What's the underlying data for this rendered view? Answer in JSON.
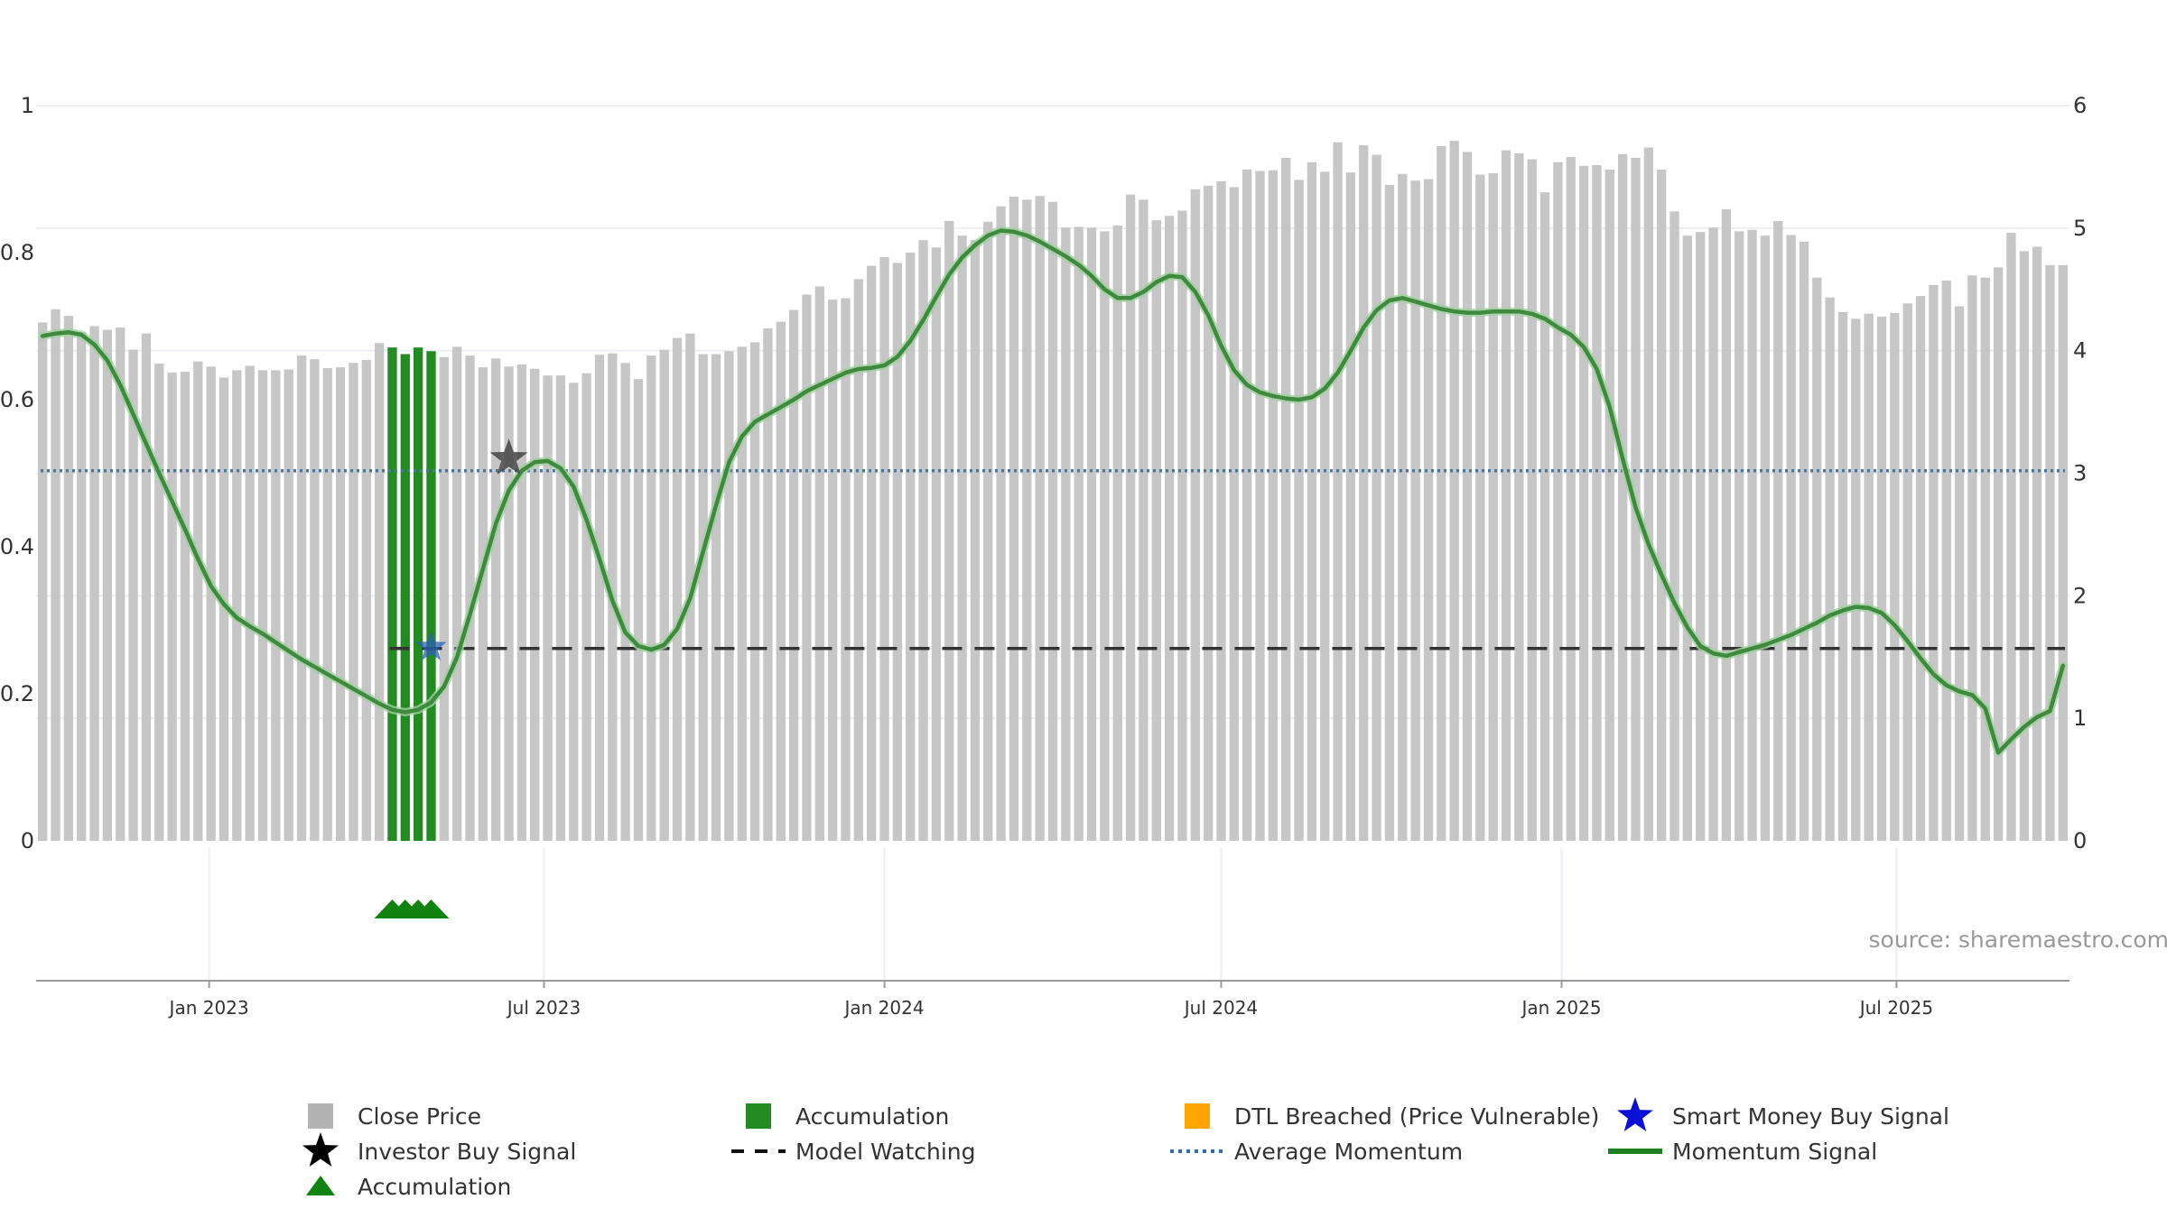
{
  "chart_data": {
    "type": "bar",
    "title": "",
    "source_text": "source: sharemaestro.com",
    "left_axis": {
      "ylim": [
        0,
        1
      ],
      "ticks": [
        "0",
        "0.2",
        "0.4",
        "0.6",
        "0.8",
        "1"
      ]
    },
    "right_axis": {
      "ylim": [
        0,
        6
      ],
      "ticks": [
        "0",
        "1",
        "2",
        "3",
        "4",
        "5",
        "6"
      ]
    },
    "x_ticks": [
      "Jan 2023",
      "Jul 2023",
      "Jan 2024",
      "Jul 2024",
      "Jan 2025",
      "Jul 2025"
    ],
    "x_start": "2022-10-03",
    "week_step_days": 7,
    "weeks": 157,
    "close_price": [
      0.705,
      0.723,
      0.714,
      0.692,
      0.7,
      0.695,
      0.698,
      0.668,
      0.69,
      0.649,
      0.637,
      0.638,
      0.652,
      0.645,
      0.63,
      0.64,
      0.646,
      0.64,
      0.64,
      0.641,
      0.66,
      0.655,
      0.643,
      0.644,
      0.65,
      0.654,
      0.677,
      0.671,
      0.662,
      0.671,
      0.666,
      0.658,
      0.672,
      0.66,
      0.644,
      0.656,
      0.645,
      0.648,
      0.642,
      0.633,
      0.633,
      0.623,
      0.636,
      0.661,
      0.663,
      0.65,
      0.628,
      0.66,
      0.668,
      0.684,
      0.69,
      0.662,
      0.662,
      0.666,
      0.672,
      0.678,
      0.697,
      0.706,
      0.722,
      0.743,
      0.754,
      0.736,
      0.738,
      0.764,
      0.782,
      0.794,
      0.786,
      0.8,
      0.817,
      0.807,
      0.843,
      0.823,
      0.817,
      0.842,
      0.863,
      0.876,
      0.872,
      0.877,
      0.869,
      0.834,
      0.835,
      0.834,
      0.829,
      0.837,
      0.879,
      0.872,
      0.844,
      0.85,
      0.857,
      0.886,
      0.891,
      0.897,
      0.889,
      0.913,
      0.911,
      0.912,
      0.929,
      0.899,
      0.923,
      0.91,
      0.95,
      0.909,
      0.946,
      0.933,
      0.892,
      0.907,
      0.898,
      0.9,
      0.945,
      0.952,
      0.937,
      0.906,
      0.908,
      0.939,
      0.935,
      0.927,
      0.882,
      0.923,
      0.93,
      0.918,
      0.919,
      0.913,
      0.934,
      0.929,
      0.943,
      0.913,
      0.856,
      0.823,
      0.828,
      0.834,
      0.859,
      0.829,
      0.831,
      0.823,
      0.843,
      0.824,
      0.815,
      0.766,
      0.739,
      0.719,
      0.71,
      0.717,
      0.713,
      0.718,
      0.731,
      0.741,
      0.756,
      0.762,
      0.727,
      0.769,
      0.766,
      0.78,
      0.827,
      0.802,
      0.808,
      0.783,
      0.783
    ],
    "accumulation_bar_weeks": [
      27,
      28,
      29,
      30
    ],
    "accumulation_marker_weeks": [
      27,
      28,
      29,
      30
    ],
    "momentum_signal": [
      4.12,
      4.14,
      4.15,
      4.13,
      4.05,
      3.92,
      3.72,
      3.48,
      3.24,
      3.0,
      2.77,
      2.54,
      2.3,
      2.08,
      1.93,
      1.82,
      1.75,
      1.69,
      1.62,
      1.55,
      1.48,
      1.42,
      1.36,
      1.3,
      1.24,
      1.18,
      1.12,
      1.07,
      1.05,
      1.07,
      1.13,
      1.26,
      1.5,
      1.85,
      2.22,
      2.59,
      2.86,
      3.02,
      3.09,
      3.1,
      3.04,
      2.89,
      2.62,
      2.3,
      1.96,
      1.7,
      1.59,
      1.56,
      1.6,
      1.73,
      1.98,
      2.36,
      2.74,
      3.09,
      3.3,
      3.42,
      3.48,
      3.54,
      3.6,
      3.67,
      3.72,
      3.77,
      3.82,
      3.85,
      3.86,
      3.88,
      3.95,
      4.08,
      4.25,
      4.44,
      4.62,
      4.76,
      4.86,
      4.94,
      4.98,
      4.97,
      4.94,
      4.89,
      4.83,
      4.77,
      4.7,
      4.61,
      4.5,
      4.43,
      4.43,
      4.48,
      4.56,
      4.61,
      4.6,
      4.48,
      4.29,
      4.04,
      3.84,
      3.72,
      3.66,
      3.63,
      3.61,
      3.6,
      3.62,
      3.69,
      3.82,
      4.0,
      4.19,
      4.33,
      4.41,
      4.43,
      4.4,
      4.37,
      4.34,
      4.32,
      4.31,
      4.31,
      4.32,
      4.32,
      4.32,
      4.3,
      4.26,
      4.19,
      4.13,
      4.03,
      3.85,
      3.54,
      3.12,
      2.72,
      2.42,
      2.17,
      1.94,
      1.74,
      1.59,
      1.53,
      1.51,
      1.54,
      1.57,
      1.6,
      1.64,
      1.68,
      1.73,
      1.78,
      1.84,
      1.88,
      1.91,
      1.9,
      1.86,
      1.76,
      1.63,
      1.49,
      1.36,
      1.27,
      1.22,
      1.19,
      1.08,
      0.72,
      0.83,
      0.93,
      1.01,
      1.06,
      1.43
    ],
    "average_momentum": 3.02,
    "model_watching": {
      "start_week": 27,
      "value": 1.57
    },
    "investor_buy_signal": {
      "week": 36,
      "value": 3.12
    },
    "smart_money_buy_signal": {
      "week": 30,
      "value": 1.58
    },
    "colors": {
      "close_price": "#c6c6c6",
      "accumulation": "#228b22",
      "momentum_signal": "#3f8a3f",
      "average_momentum": "#4a76a0",
      "model_watching": "#333333",
      "investor_star": "#444444",
      "smart_money_star": "#2b5fb5",
      "triangles": "#108210",
      "grid": "#eceef4",
      "axis": "#9a9a9a"
    },
    "legend": [
      {
        "label": "Close Price",
        "symbol": "square",
        "color": "#b3b3b3"
      },
      {
        "label": "Accumulation",
        "symbol": "square",
        "color": "#228b22"
      },
      {
        "label": "DTL Breached (Price Vulnerable)",
        "symbol": "square",
        "color": "#ffa500"
      },
      {
        "label": "Smart Money Buy Signal",
        "symbol": "star",
        "color": "#0a10d6"
      },
      {
        "label": "Investor Buy Signal",
        "symbol": "star",
        "color": "#000000"
      },
      {
        "label": "Model Watching",
        "symbol": "dash",
        "color": "#111111"
      },
      {
        "label": "Average Momentum",
        "symbol": "dotted",
        "color": "#2f6fa8"
      },
      {
        "label": "Momentum Signal",
        "symbol": "line",
        "color": "#1f7f1f"
      },
      {
        "label": "Accumulation",
        "symbol": "triangle",
        "color": "#108210"
      }
    ]
  }
}
